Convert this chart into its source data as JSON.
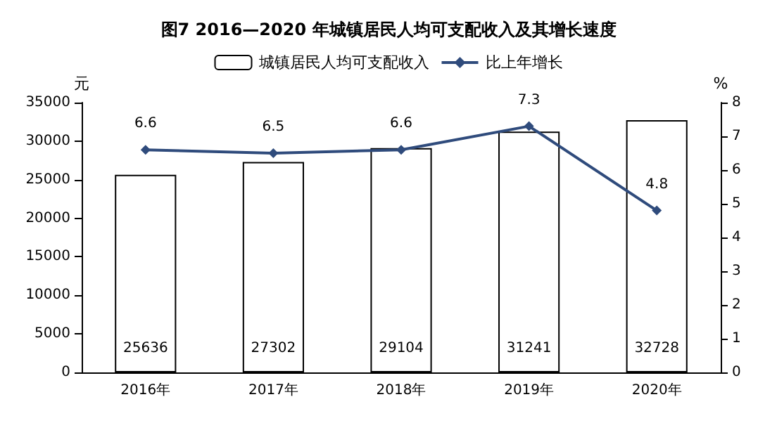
{
  "chart_data": {
    "type": "bar",
    "title": "图7 2016—2020 年城镇居民人均可支配收入及其增长速度",
    "categories": [
      "2016年",
      "2017年",
      "2018年",
      "2019年",
      "2020年"
    ],
    "series": [
      {
        "name": "城镇居民人均可支配收入",
        "color": "#ffffff",
        "values": [
          25636,
          27302,
          29104,
          31241,
          32728
        ]
      },
      {
        "name": "比上年增长",
        "type": "line",
        "axis": "y2",
        "color": "#2f4b7c",
        "marker": "diamond",
        "values": [
          6.6,
          6.5,
          6.6,
          7.3,
          4.8
        ]
      }
    ],
    "ylabel": "元",
    "y2label": "%",
    "ylim": [
      0,
      35000
    ],
    "yticks": [
      0,
      5000,
      10000,
      15000,
      20000,
      25000,
      30000,
      35000
    ],
    "y2lim": [
      0,
      8
    ],
    "y2ticks": [
      0,
      1,
      2,
      3,
      4,
      5,
      6,
      7,
      8
    ],
    "data_labels": true,
    "grid": false,
    "legend": "top"
  }
}
